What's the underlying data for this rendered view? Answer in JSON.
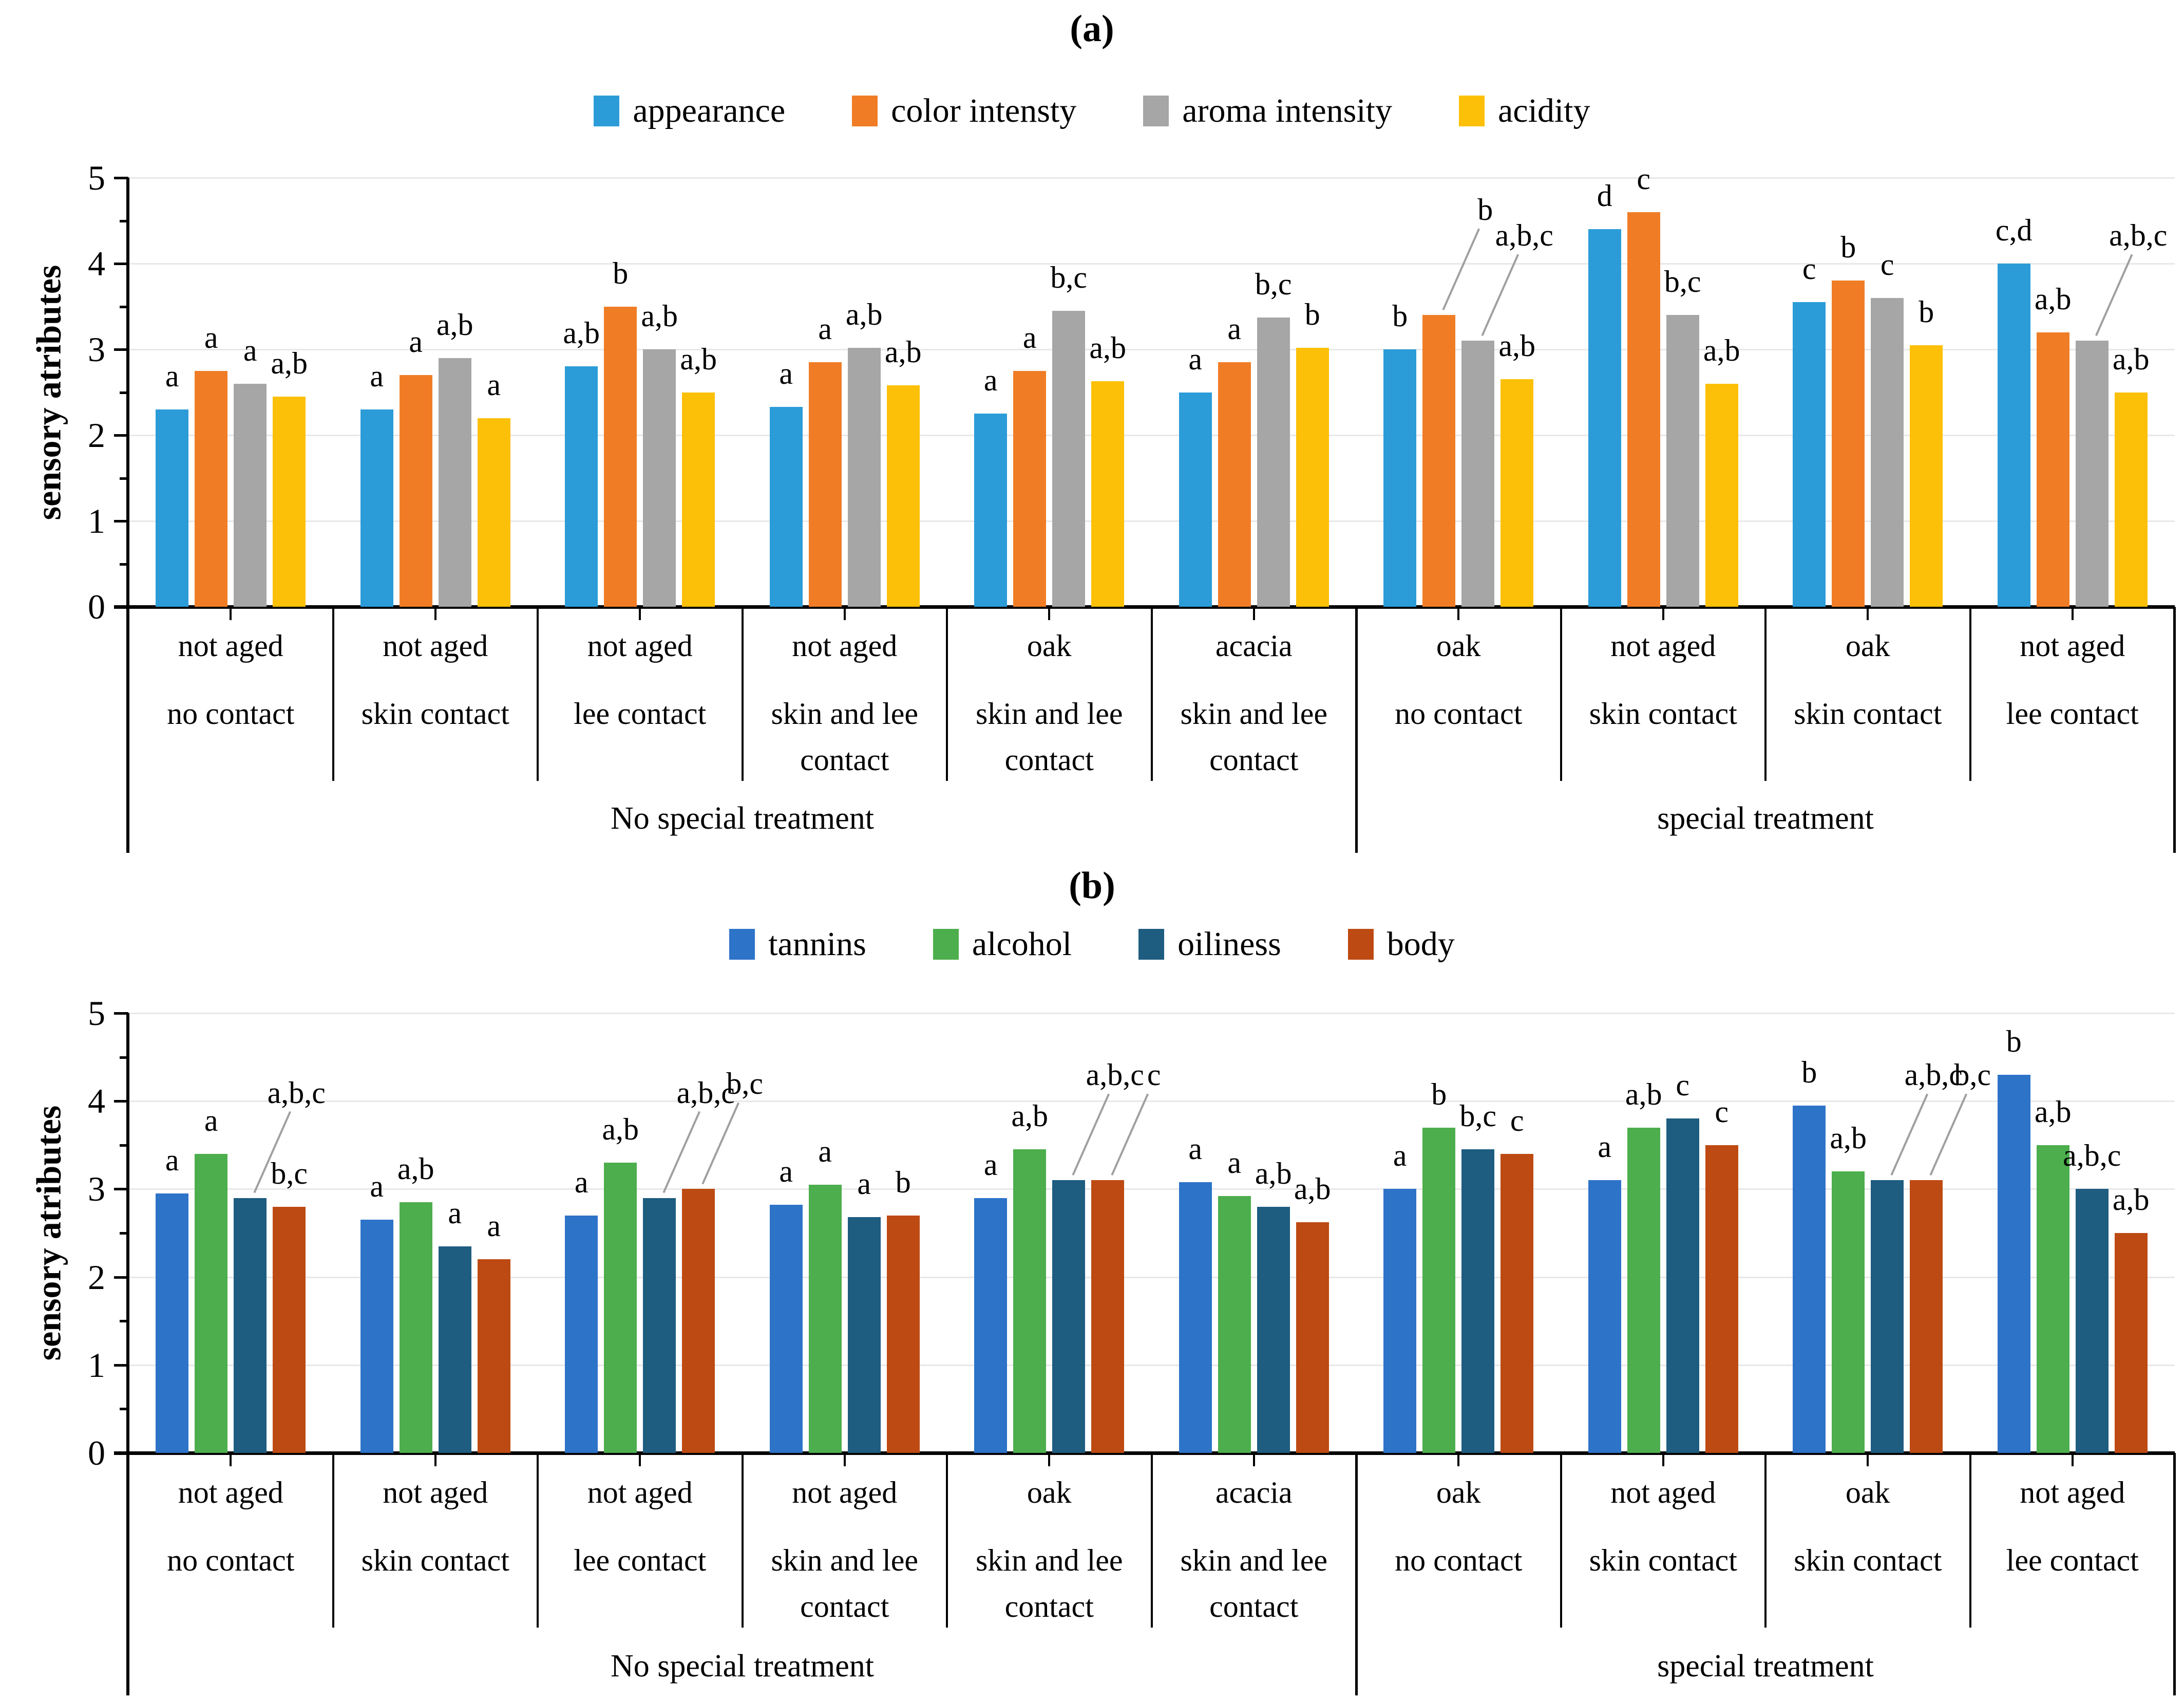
{
  "chart_data": [
    {
      "type": "bar",
      "panel": "a",
      "title": "(a)",
      "ylabel": "sensory atributes",
      "ylim": [
        0,
        5
      ],
      "yticks": [
        0,
        1,
        2,
        3,
        4,
        5
      ],
      "grid": true,
      "legend_position": "top",
      "series": [
        {
          "name": "appearance",
          "color": "#2b9cd8",
          "values": [
            2.3,
            2.3,
            2.8,
            2.33,
            2.25,
            2.5,
            3.0,
            4.4,
            3.55,
            4.0
          ]
        },
        {
          "name": "color intensty",
          "color": "#f07d26",
          "values": [
            2.75,
            2.7,
            3.5,
            2.85,
            2.75,
            2.85,
            3.4,
            4.6,
            3.8,
            3.2
          ]
        },
        {
          "name": "aroma intensity",
          "color": "#a6a6a6",
          "values": [
            2.6,
            2.9,
            3.0,
            3.02,
            3.45,
            3.37,
            3.1,
            3.4,
            3.6,
            3.1
          ]
        },
        {
          "name": "acidity",
          "color": "#fdc008",
          "values": [
            2.45,
            2.2,
            2.5,
            2.58,
            2.63,
            3.02,
            2.65,
            2.6,
            3.05,
            2.5
          ]
        }
      ],
      "sig_letters": [
        [
          "a",
          "a",
          "a",
          "a,b"
        ],
        [
          "a",
          "a",
          "a,b",
          "a"
        ],
        [
          "a,b",
          "b",
          "a,b",
          "a,b"
        ],
        [
          "a",
          "a",
          "a,b",
          "a,b"
        ],
        [
          "a",
          "a",
          "b,c",
          "a,b"
        ],
        [
          "a",
          "a",
          "b,c",
          "b"
        ],
        [
          "b",
          "b",
          "a,b,c",
          "a,b"
        ],
        [
          "d",
          "c",
          "b,c",
          "a,b"
        ],
        [
          "c",
          "b",
          "c",
          "b"
        ],
        [
          "c,d",
          "a,b",
          "a,b,c",
          "a,b"
        ]
      ],
      "leader_lines": [
        [
          0,
          0,
          0,
          0
        ],
        [
          0,
          0,
          0,
          0
        ],
        [
          0,
          0,
          0,
          0
        ],
        [
          0,
          0,
          0,
          0
        ],
        [
          0,
          0,
          0,
          0
        ],
        [
          0,
          0,
          0,
          0
        ],
        [
          0,
          1,
          1,
          0
        ],
        [
          0,
          0,
          0,
          0
        ],
        [
          0,
          0,
          0,
          0
        ],
        [
          0,
          0,
          1,
          0
        ]
      ],
      "categories": [
        {
          "aging": "not aged",
          "contact": [
            "no contact"
          ]
        },
        {
          "aging": "not aged",
          "contact": [
            "skin contact"
          ]
        },
        {
          "aging": "not aged",
          "contact": [
            "lee contact"
          ]
        },
        {
          "aging": "not aged",
          "contact": [
            "skin and lee",
            "contact"
          ]
        },
        {
          "aging": "oak",
          "contact": [
            "skin and lee",
            "contact"
          ]
        },
        {
          "aging": "acacia",
          "contact": [
            "skin and lee",
            "contact"
          ]
        },
        {
          "aging": "oak",
          "contact": [
            "no contact"
          ]
        },
        {
          "aging": "not aged",
          "contact": [
            "skin contact"
          ]
        },
        {
          "aging": "oak",
          "contact": [
            "skin contact"
          ]
        },
        {
          "aging": "not aged",
          "contact": [
            "lee contact"
          ]
        }
      ],
      "category_groups": [
        {
          "label": "No special treatment",
          "from": 0,
          "to": 5
        },
        {
          "label": "special treatment",
          "from": 6,
          "to": 9
        }
      ]
    },
    {
      "type": "bar",
      "panel": "b",
      "title": "(b)",
      "ylabel": "sensory atributes",
      "ylim": [
        0,
        5
      ],
      "yticks": [
        0,
        1,
        2,
        3,
        4,
        5
      ],
      "grid": true,
      "legend_position": "top",
      "series": [
        {
          "name": "tannins",
          "color": "#2d73c8",
          "values": [
            2.95,
            2.65,
            2.7,
            2.82,
            2.9,
            3.08,
            3.0,
            3.1,
            3.95,
            4.3
          ]
        },
        {
          "name": "alcohol",
          "color": "#4cae4c",
          "values": [
            3.4,
            2.85,
            3.3,
            3.05,
            3.45,
            2.92,
            3.7,
            3.7,
            3.2,
            3.5
          ]
        },
        {
          "name": "oiliness",
          "color": "#1e5c80",
          "values": [
            2.9,
            2.35,
            2.9,
            2.68,
            3.1,
            2.8,
            3.45,
            3.8,
            3.1,
            3.0
          ]
        },
        {
          "name": "body",
          "color": "#bd4a12",
          "values": [
            2.8,
            2.2,
            3.0,
            2.7,
            3.1,
            2.62,
            3.4,
            3.5,
            3.1,
            2.5
          ]
        }
      ],
      "sig_letters": [
        [
          "a",
          "a",
          "a,b,c",
          "b,c"
        ],
        [
          "a",
          "a,b",
          "a",
          "a"
        ],
        [
          "a",
          "a,b",
          "a,b,c",
          "b,c"
        ],
        [
          "a",
          "a",
          "a",
          "b"
        ],
        [
          "a",
          "a,b",
          "a,b,c",
          "c"
        ],
        [
          "a",
          "a",
          "a,b",
          "a,b"
        ],
        [
          "a",
          "b",
          "b,c",
          "c"
        ],
        [
          "a",
          "a,b",
          "c",
          "c"
        ],
        [
          "b",
          "a,b",
          "a,b,c",
          "b,c"
        ],
        [
          "b",
          "a,b",
          "a,b,c",
          "a,b"
        ]
      ],
      "leader_lines": [
        [
          0,
          0,
          1,
          0
        ],
        [
          0,
          0,
          0,
          0
        ],
        [
          0,
          0,
          1,
          1
        ],
        [
          0,
          0,
          0,
          0
        ],
        [
          0,
          0,
          1,
          1
        ],
        [
          0,
          0,
          0,
          0
        ],
        [
          0,
          0,
          0,
          0
        ],
        [
          0,
          0,
          0,
          0
        ],
        [
          0,
          0,
          1,
          1
        ],
        [
          0,
          0,
          0,
          0
        ]
      ],
      "categories": [
        {
          "aging": "not aged",
          "contact": [
            "no contact"
          ]
        },
        {
          "aging": "not aged",
          "contact": [
            "skin contact"
          ]
        },
        {
          "aging": "not aged",
          "contact": [
            "lee contact"
          ]
        },
        {
          "aging": "not aged",
          "contact": [
            "skin and lee",
            "contact"
          ]
        },
        {
          "aging": "oak",
          "contact": [
            "skin and lee",
            "contact"
          ]
        },
        {
          "aging": "acacia",
          "contact": [
            "skin and lee",
            "contact"
          ]
        },
        {
          "aging": "oak",
          "contact": [
            "no contact"
          ]
        },
        {
          "aging": "not aged",
          "contact": [
            "skin contact"
          ]
        },
        {
          "aging": "oak",
          "contact": [
            "skin contact"
          ]
        },
        {
          "aging": "not aged",
          "contact": [
            "lee contact"
          ]
        }
      ],
      "category_groups": [
        {
          "label": "No special treatment",
          "from": 0,
          "to": 5
        },
        {
          "label": "special treatment",
          "from": 6,
          "to": 9
        }
      ]
    }
  ]
}
